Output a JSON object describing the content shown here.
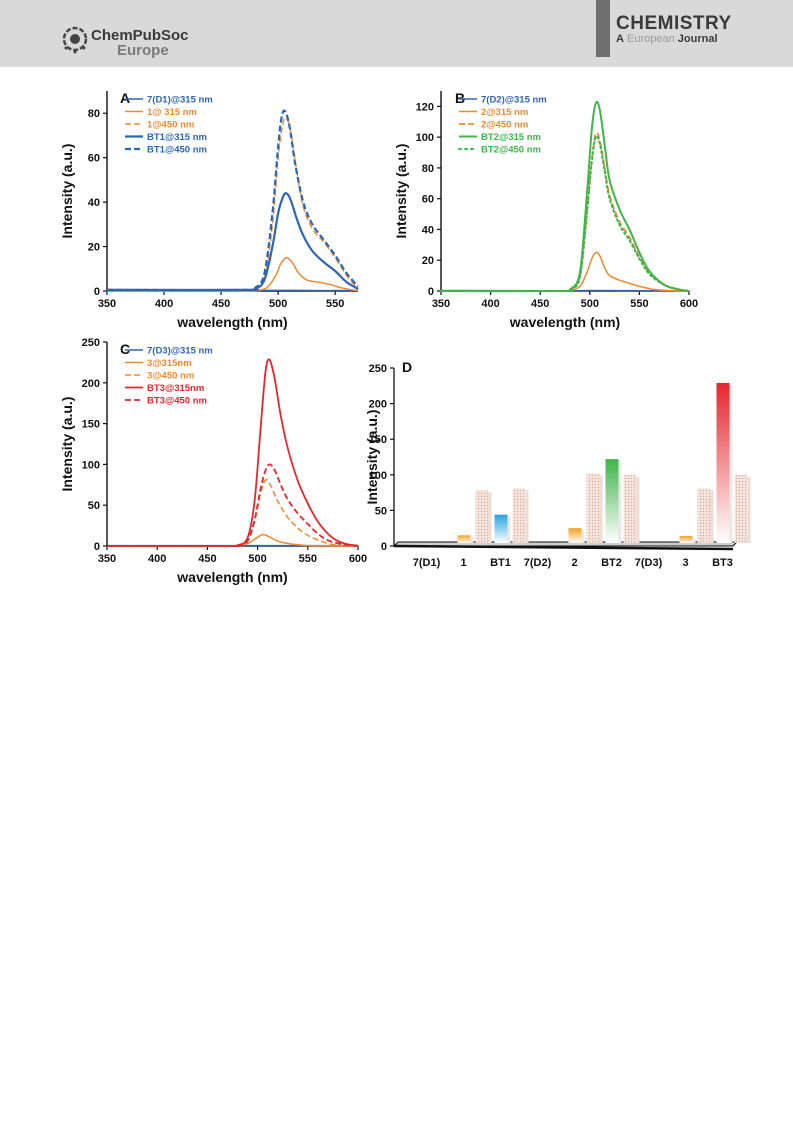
{
  "header": {
    "publisher_name": "ChemPubSoc",
    "publisher_sub": "Europe",
    "journal_name": "CHEMISTRY",
    "journal_sub_a": "A",
    "journal_sub_european": "European",
    "journal_sub_journal": "Journal"
  },
  "colors": {
    "blue": "#2e66b6",
    "orange": "#f0892e",
    "green": "#3fb54a",
    "red": "#e5262d"
  },
  "chart_data": [
    {
      "panel": "A",
      "type": "line",
      "xlabel": "wavelength (nm)",
      "ylabel": "Intensity (a.u.)",
      "xlim": [
        350,
        570
      ],
      "ylim": [
        0,
        90
      ],
      "xticks": [
        350,
        400,
        450,
        500,
        550
      ],
      "yticks": [
        0,
        20,
        40,
        60,
        80
      ],
      "legend_position": "top-left",
      "series": [
        {
          "name": "7(D1)@315 nm",
          "color": "#2e66b6",
          "dash": "solid",
          "width": 1.5,
          "x": [
            350,
            470,
            490,
            500,
            507,
            515,
            530,
            550,
            570
          ],
          "y": [
            0.3,
            0.2,
            0.3,
            0.3,
            0.3,
            0.3,
            0.2,
            0.2,
            0.2
          ]
        },
        {
          "name": "1@ 315 nm",
          "color": "#f0892e",
          "dash": "solid",
          "width": 1.5,
          "x": [
            350,
            470,
            480,
            490,
            498,
            502,
            507,
            512,
            518,
            525,
            535,
            545,
            555,
            565,
            570
          ],
          "y": [
            0,
            0,
            0.2,
            1.5,
            7,
            12,
            15,
            13,
            8,
            5,
            4,
            3,
            1.5,
            0.5,
            0.3
          ]
        },
        {
          "name": "1@450 nm",
          "color": "#f0892e",
          "dash": "dash",
          "width": 1.5,
          "x": [
            350,
            470,
            480,
            488,
            495,
            500,
            504,
            507,
            511,
            516,
            522,
            530,
            540,
            550,
            560,
            570
          ],
          "y": [
            0,
            0,
            1,
            6,
            30,
            60,
            75,
            78,
            72,
            55,
            38,
            28,
            22,
            15,
            7,
            1
          ]
        },
        {
          "name": "BT1@315 nm",
          "color": "#2e66b6",
          "dash": "solid",
          "width": 2.2,
          "x": [
            350,
            470,
            480,
            488,
            495,
            500,
            504,
            507,
            511,
            516,
            522,
            530,
            540,
            550,
            560,
            570
          ],
          "y": [
            0.5,
            0.5,
            1,
            5,
            20,
            35,
            42,
            44,
            41,
            33,
            25,
            18,
            13,
            9,
            4,
            1
          ]
        },
        {
          "name": "BT1@450 nm",
          "color": "#2e66b6",
          "dash": "dash",
          "width": 2.2,
          "x": [
            350,
            470,
            480,
            488,
            495,
            500,
            503,
            506,
            510,
            515,
            522,
            530,
            540,
            550,
            560,
            570
          ],
          "y": [
            0.5,
            0.5,
            1.5,
            8,
            35,
            65,
            78,
            81,
            74,
            57,
            40,
            30,
            23,
            16,
            8,
            2
          ]
        }
      ]
    },
    {
      "panel": "B",
      "type": "line",
      "xlabel": "wavelength (nm)",
      "ylabel": "Intensity (a.u.)",
      "xlim": [
        350,
        600
      ],
      "ylim": [
        0,
        130
      ],
      "xticks": [
        350,
        400,
        450,
        500,
        550,
        600
      ],
      "yticks": [
        0,
        20,
        40,
        60,
        80,
        100,
        120
      ],
      "legend_position": "top-left",
      "series": [
        {
          "name": "7(D2)@315 nm",
          "color": "#2e66b6",
          "dash": "solid",
          "width": 1.5,
          "x": [
            350,
            470,
            500,
            550,
            600
          ],
          "y": [
            0.3,
            0.2,
            0.3,
            0.2,
            0.2
          ]
        },
        {
          "name": "2@315 nm",
          "color": "#f0892e",
          "dash": "solid",
          "width": 1.5,
          "x": [
            350,
            470,
            480,
            490,
            497,
            502,
            506,
            510,
            515,
            520,
            530,
            540,
            550,
            565,
            580,
            600
          ],
          "y": [
            0,
            0,
            0.5,
            3,
            12,
            21,
            25,
            23,
            15,
            10,
            7,
            5,
            3,
            1,
            0.3,
            0
          ]
        },
        {
          "name": "2@450 nm",
          "color": "#f0892e",
          "dash": "dash",
          "width": 1.8,
          "x": [
            350,
            470,
            480,
            490,
            497,
            502,
            506,
            510,
            515,
            520,
            530,
            540,
            550,
            560,
            575,
            590,
            600
          ],
          "y": [
            0,
            0,
            1,
            10,
            50,
            85,
            102,
            98,
            80,
            62,
            45,
            35,
            22,
            12,
            4,
            1,
            0
          ]
        },
        {
          "name": "BT2@315 nm",
          "color": "#3fb54a",
          "dash": "solid",
          "width": 2,
          "x": [
            350,
            470,
            480,
            490,
            497,
            502,
            506,
            510,
            515,
            520,
            530,
            540,
            550,
            560,
            575,
            590,
            600
          ],
          "y": [
            0,
            0,
            1,
            12,
            62,
            105,
            122,
            118,
            95,
            72,
            53,
            40,
            25,
            13,
            4,
            1,
            0
          ]
        },
        {
          "name": "BT2@450 nm",
          "color": "#3fb54a",
          "dash": "dot",
          "width": 2,
          "x": [
            350,
            470,
            480,
            490,
            497,
            502,
            506,
            510,
            515,
            520,
            530,
            540,
            550,
            560,
            575,
            590,
            600
          ],
          "y": [
            0,
            0,
            1,
            9,
            50,
            84,
            100,
            96,
            78,
            60,
            43,
            33,
            21,
            11,
            4,
            1,
            0
          ]
        }
      ]
    },
    {
      "panel": "C",
      "type": "line",
      "xlabel": "wavelength (nm)",
      "ylabel": "Intensity (a.u.)",
      "xlim": [
        350,
        600
      ],
      "ylim": [
        0,
        250
      ],
      "xticks": [
        350,
        400,
        450,
        500,
        550,
        600
      ],
      "yticks": [
        0,
        50,
        100,
        150,
        200,
        250
      ],
      "legend_position": "top-left",
      "series": [
        {
          "name": "7(D3)@315 nm",
          "color": "#2e66b6",
          "dash": "solid",
          "width": 1.5,
          "x": [
            350,
            470,
            500,
            550,
            600
          ],
          "y": [
            0.5,
            0.5,
            0.5,
            0.5,
            0.5
          ]
        },
        {
          "name": "3@315nm",
          "color": "#f0892e",
          "dash": "solid",
          "width": 1.5,
          "x": [
            350,
            470,
            480,
            490,
            498,
            505,
            512,
            520,
            530,
            545,
            560,
            600
          ],
          "y": [
            0,
            0,
            0.5,
            3,
            9,
            14,
            11,
            6,
            3,
            1,
            0.3,
            0
          ]
        },
        {
          "name": "3@450 nm",
          "color": "#f0892e",
          "dash": "dash",
          "width": 1.5,
          "x": [
            350,
            470,
            480,
            490,
            497,
            503,
            508,
            513,
            520,
            530,
            540,
            550,
            565,
            580,
            600
          ],
          "y": [
            0,
            0,
            0.5,
            6,
            30,
            65,
            81,
            74,
            55,
            35,
            22,
            13,
            5,
            1,
            0
          ]
        },
        {
          "name": "BT3@315nm",
          "color": "#e5262d",
          "dash": "solid",
          "width": 1.8,
          "x": [
            350,
            470,
            480,
            490,
            497,
            503,
            508,
            512,
            517,
            523,
            530,
            540,
            550,
            560,
            570,
            580,
            590,
            600
          ],
          "y": [
            0,
            0,
            1,
            10,
            55,
            145,
            215,
            228,
            205,
            160,
            120,
            80,
            52,
            30,
            15,
            6,
            2,
            0.5
          ]
        },
        {
          "name": "BT3@450 nm",
          "color": "#e5262d",
          "dash": "dash",
          "width": 1.8,
          "x": [
            350,
            470,
            480,
            490,
            497,
            503,
            508,
            512,
            517,
            523,
            530,
            540,
            550,
            560,
            570,
            585,
            600
          ],
          "y": [
            0,
            0,
            0.5,
            6,
            32,
            70,
            93,
            100,
            93,
            75,
            57,
            40,
            27,
            15,
            7,
            2,
            0
          ]
        }
      ]
    },
    {
      "panel": "D",
      "type": "bar",
      "ylabel": "Intensity (a.u.)",
      "ylim": [
        0,
        250
      ],
      "yticks": [
        0,
        50,
        100,
        150,
        200,
        250
      ],
      "categories": [
        "7(D1)",
        "1",
        "BT1",
        "7(D2)",
        "2",
        "BT2",
        "7(D3)",
        "3",
        "BT3"
      ],
      "series": [
        {
          "excitation": "315 nm",
          "values": [
            0.3,
            15,
            44,
            0.3,
            25,
            122,
            0.5,
            14,
            229
          ]
        },
        {
          "excitation": "450 nm",
          "values": [
            null,
            78,
            81,
            null,
            102,
            100,
            null,
            81,
            100
          ]
        }
      ],
      "bar_colors": [
        "#2e66b6",
        "#f0a020",
        "#2aa3e0",
        "#2e66b6",
        "#f0a020",
        "#3fb54a",
        "#2e66b6",
        "#f0a020",
        "#e5262d"
      ]
    }
  ]
}
